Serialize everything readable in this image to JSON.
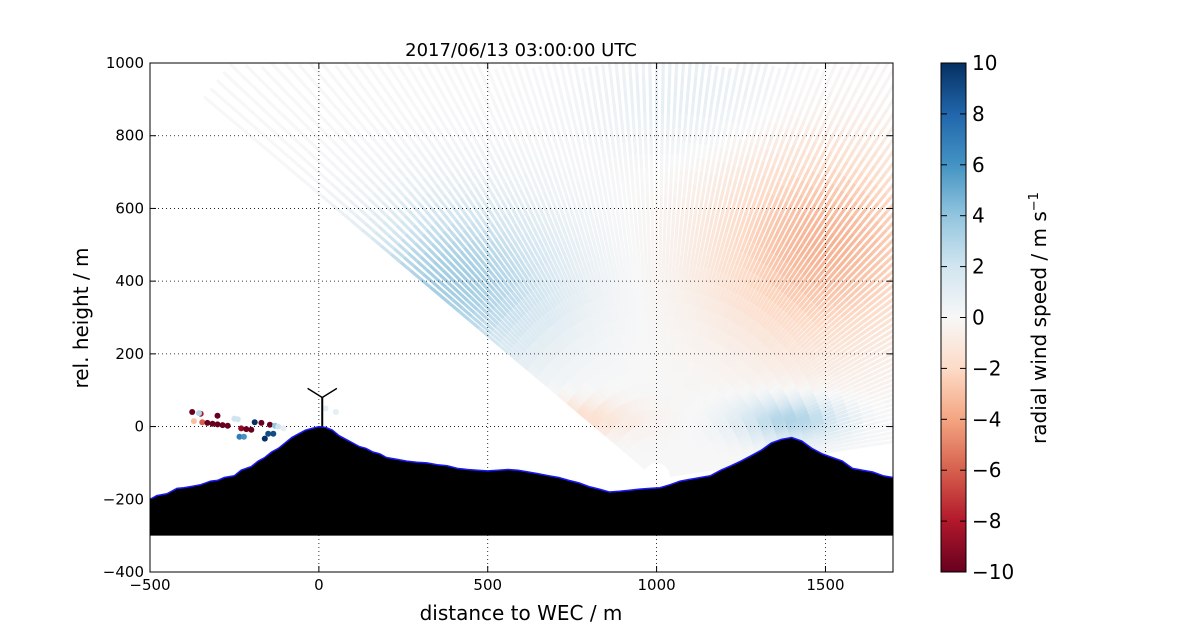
{
  "chart_data": {
    "type": "heatmap",
    "title": "2017/06/13 03:00:00 UTC",
    "xlabel": "distance to WEC / m",
    "ylabel": "rel. height / m",
    "xlim": [
      -500,
      1700
    ],
    "ylim": [
      -400,
      1000
    ],
    "xticks": [
      -500,
      0,
      500,
      1000,
      1500
    ],
    "yticks": [
      -400,
      -200,
      0,
      200,
      400,
      600,
      800,
      1000
    ],
    "grid": true,
    "grid_style": "dotted",
    "colormap": "RdBu",
    "colorbar": {
      "label": "radial wind speed / m s",
      "label_superscript": "−1",
      "range": [
        -10,
        10
      ],
      "ticks": [
        -10,
        -8,
        -6,
        -4,
        -2,
        0,
        2,
        4,
        6,
        8,
        10
      ],
      "tick_labels": [
        "−10",
        "−8",
        "−6",
        "−4",
        "−2",
        "0",
        "2",
        "4",
        "6",
        "8",
        "10"
      ]
    },
    "scan": {
      "origin_x": 1000,
      "origin_y": -140,
      "range_max": 1700,
      "elevation_start_deg": 8,
      "elevation_end_deg": 142
    },
    "wind_field": {
      "description_terms": [
        {
          "x": 400,
          "y": 400,
          "value": 3.5,
          "sx": 320,
          "sy": 230
        },
        {
          "x": 1500,
          "y": 500,
          "value": -3.5,
          "sx": 330,
          "sy": 280
        },
        {
          "x": 250,
          "y": 30,
          "value": -3.2,
          "sx": 230,
          "sy": 70
        },
        {
          "x": 700,
          "y": 20,
          "value": -2.0,
          "sx": 220,
          "sy": 50
        },
        {
          "x": 1400,
          "y": 20,
          "value": 3.2,
          "sx": 170,
          "sy": 60
        },
        {
          "x": 1100,
          "y": 900,
          "value": 1.0,
          "sx": 300,
          "sy": 160
        }
      ]
    },
    "terrain": {
      "base_y": -300,
      "x": [
        -500,
        -480,
        -450,
        -420,
        -400,
        -380,
        -350,
        -320,
        -300,
        -280,
        -250,
        -230,
        -200,
        -180,
        -160,
        -140,
        -120,
        -100,
        -80,
        -60,
        -40,
        -20,
        0,
        20,
        40,
        60,
        80,
        100,
        120,
        140,
        160,
        180,
        200,
        230,
        260,
        290,
        320,
        350,
        380,
        410,
        440,
        470,
        500,
        530,
        560,
        590,
        620,
        650,
        680,
        710,
        740,
        770,
        800,
        830,
        860,
        890,
        920,
        950,
        980,
        1010,
        1040,
        1070,
        1100,
        1130,
        1160,
        1190,
        1220,
        1250,
        1280,
        1310,
        1340,
        1370,
        1400,
        1430,
        1460,
        1490,
        1520,
        1550,
        1580,
        1610,
        1640,
        1670,
        1700
      ],
      "y": [
        -200,
        -190,
        -185,
        -170,
        -168,
        -165,
        -160,
        -150,
        -148,
        -140,
        -135,
        -120,
        -110,
        -95,
        -85,
        -70,
        -60,
        -45,
        -30,
        -20,
        -10,
        -5,
        0,
        -2,
        -10,
        -25,
        -35,
        -45,
        -55,
        -60,
        -70,
        -75,
        -85,
        -90,
        -95,
        -98,
        -100,
        -105,
        -108,
        -115,
        -118,
        -120,
        -122,
        -120,
        -118,
        -120,
        -125,
        -130,
        -135,
        -140,
        -148,
        -155,
        -165,
        -172,
        -180,
        -178,
        -175,
        -172,
        -170,
        -168,
        -160,
        -150,
        -145,
        -140,
        -135,
        -120,
        -108,
        -95,
        -80,
        -65,
        -45,
        -35,
        -30,
        -40,
        -60,
        -75,
        -85,
        -95,
        -115,
        -120,
        -125,
        -135,
        -140
      ]
    },
    "obs_points": [
      {
        "x": -375,
        "y": 40,
        "value": -10
      },
      {
        "x": -350,
        "y": 35,
        "value": -8
      },
      {
        "x": -300,
        "y": 30,
        "value": -10
      },
      {
        "x": -370,
        "y": 15,
        "value": -3
      },
      {
        "x": -345,
        "y": 12,
        "value": -6
      },
      {
        "x": -330,
        "y": 10,
        "value": -10
      },
      {
        "x": -315,
        "y": 8,
        "value": -10
      },
      {
        "x": -300,
        "y": 6,
        "value": -10
      },
      {
        "x": -285,
        "y": 4,
        "value": -10
      },
      {
        "x": -270,
        "y": 2,
        "value": -10
      },
      {
        "x": -355,
        "y": 37,
        "value": 3
      },
      {
        "x": -250,
        "y": 22,
        "value": 2
      },
      {
        "x": -240,
        "y": 20,
        "value": 2
      },
      {
        "x": -230,
        "y": -5,
        "value": -9
      },
      {
        "x": -215,
        "y": -7,
        "value": -10
      },
      {
        "x": -200,
        "y": -9,
        "value": -10
      },
      {
        "x": -190,
        "y": 12,
        "value": 10
      },
      {
        "x": -170,
        "y": 10,
        "value": -10
      },
      {
        "x": -145,
        "y": 5,
        "value": -10
      },
      {
        "x": -130,
        "y": 2,
        "value": 4
      },
      {
        "x": -120,
        "y": 0,
        "value": 2
      },
      {
        "x": -235,
        "y": -28,
        "value": 7
      },
      {
        "x": -222,
        "y": -28,
        "value": 6
      },
      {
        "x": -150,
        "y": -20,
        "value": 9
      },
      {
        "x": -135,
        "y": -20,
        "value": 9
      },
      {
        "x": -160,
        "y": -33,
        "value": 10
      },
      {
        "x": -105,
        "y": -5,
        "value": 1
      },
      {
        "x": 20,
        "y": 50,
        "value": 1
      },
      {
        "x": 50,
        "y": 40,
        "value": 1
      }
    ],
    "wec": {
      "x": 10,
      "hub_height": 80,
      "hub_base": 0,
      "blade_length": 50
    }
  }
}
